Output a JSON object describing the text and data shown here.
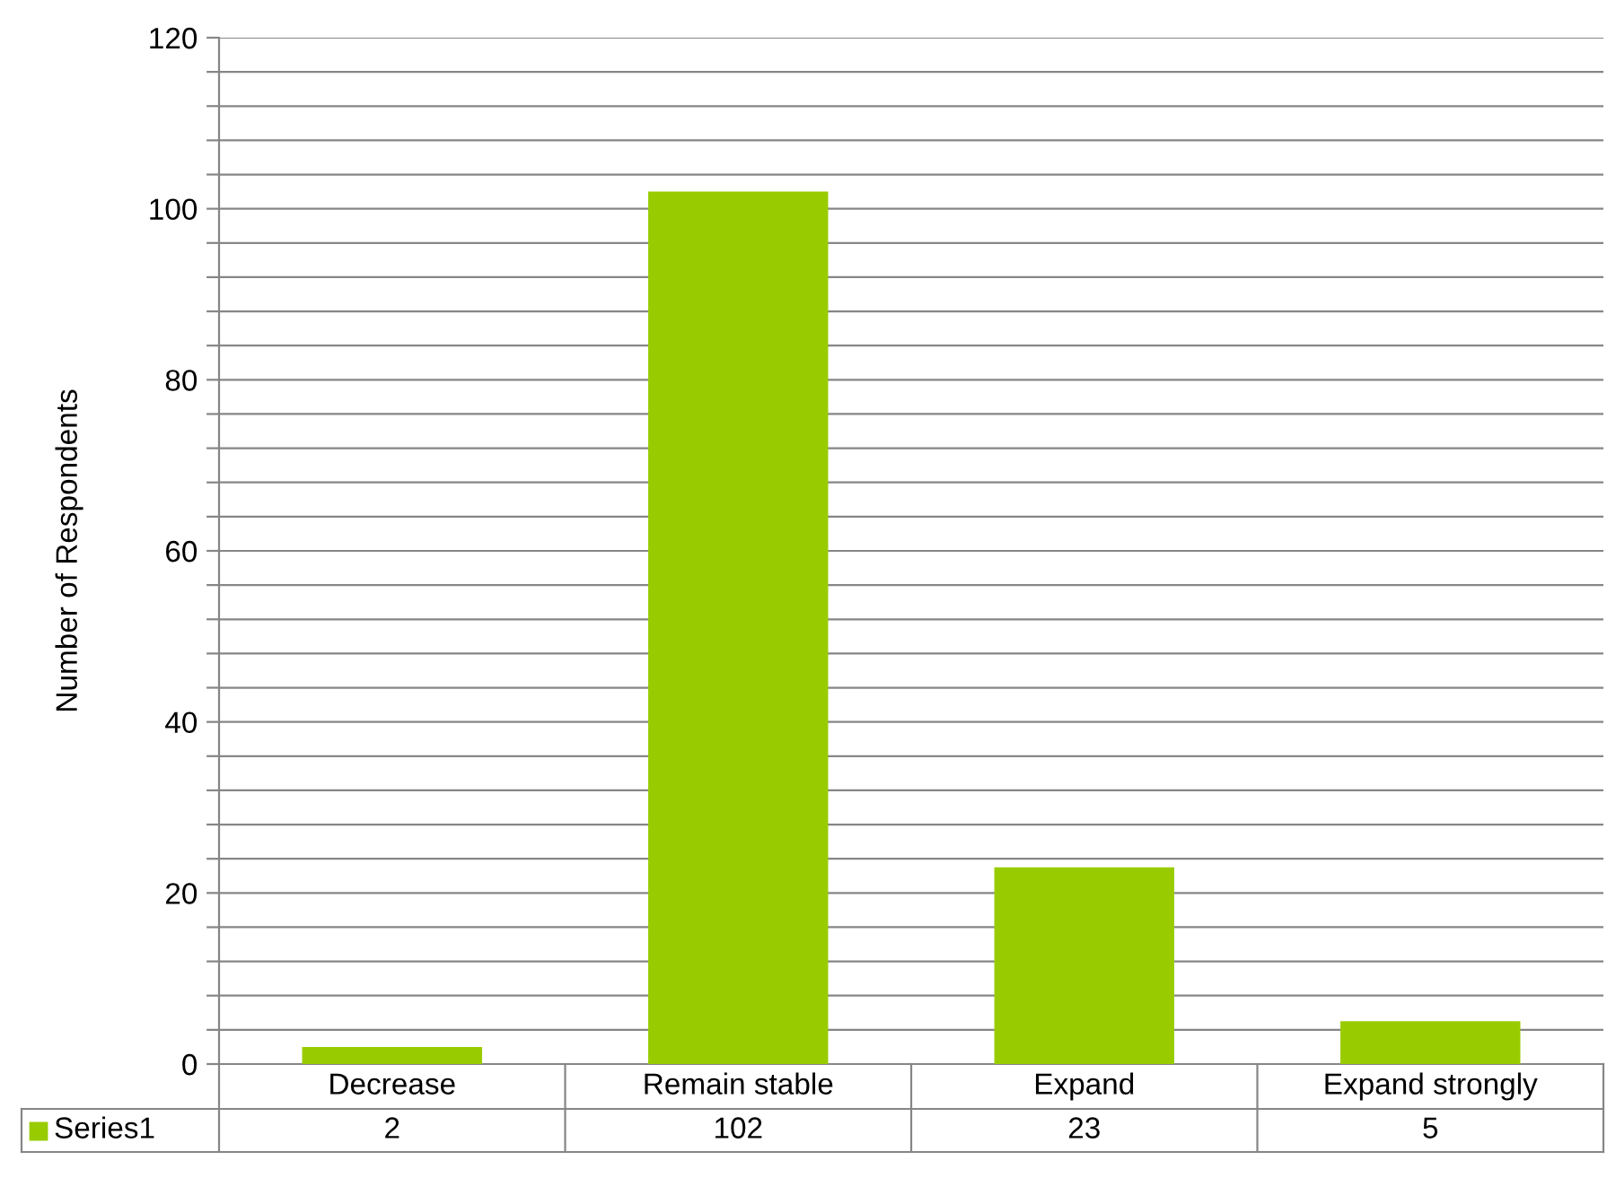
{
  "chart_data": {
    "type": "bar",
    "ylabel": "Number of Respondents",
    "categories": [
      "Decrease",
      "Remain stable",
      "Expand",
      "Expand strongly"
    ],
    "series": [
      {
        "name": "Series1",
        "color": "#99cc00",
        "values": [
          2,
          102,
          23,
          5
        ]
      }
    ],
    "ylim": [
      0,
      120
    ],
    "yticks": [
      0,
      {
        "value": 4,
        "label": null
      },
      {
        "value": 8,
        "label": null
      },
      {
        "value": 12,
        "label": null
      },
      {
        "value": 16,
        "label": null
      },
      20,
      {
        "value": 24,
        "label": null
      },
      {
        "value": 28,
        "label": null
      },
      {
        "value": 32,
        "label": null
      },
      {
        "value": 36,
        "label": null
      },
      40,
      {
        "value": 44,
        "label": null
      },
      {
        "value": 48,
        "label": null
      },
      {
        "value": 52,
        "label": null
      },
      {
        "value": 56,
        "label": null
      },
      60,
      {
        "value": 64,
        "label": null
      },
      {
        "value": 68,
        "label": null
      },
      {
        "value": 72,
        "label": null
      },
      {
        "value": 76,
        "label": null
      },
      80,
      {
        "value": 84,
        "label": null
      },
      {
        "value": 88,
        "label": null
      },
      {
        "value": 92,
        "label": null
      },
      {
        "value": 96,
        "label": null
      },
      100,
      {
        "value": 104,
        "label": null
      },
      {
        "value": 108,
        "label": null
      },
      {
        "value": 112,
        "label": null
      },
      {
        "value": 116,
        "label": null
      },
      120
    ],
    "grid": "y",
    "data_labels": true,
    "legend": "bottom left"
  }
}
